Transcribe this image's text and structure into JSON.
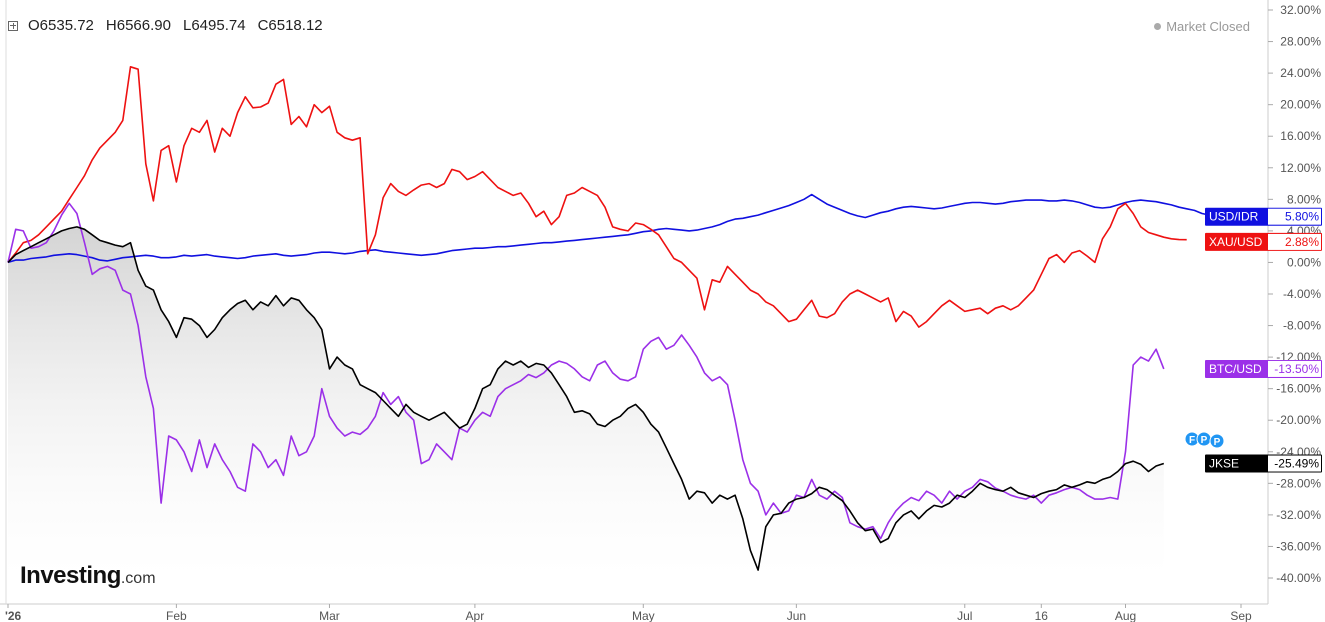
{
  "header": {
    "open_label": "O",
    "open": "6535.72",
    "high_label": "H",
    "high": "6566.90",
    "low_label": "L",
    "low": "6495.74",
    "close_label": "C",
    "close": "6518.12",
    "status": "Market Closed"
  },
  "logo": {
    "brand": "Investing",
    "suffix": ".com"
  },
  "markers": [
    "F",
    "P",
    "P"
  ],
  "colors": {
    "usd_idr": "#1010e0",
    "xau_usd": "#ee1111",
    "btc_usd": "#9b30e8",
    "jkse": "#000000",
    "marker": "#2196f3"
  },
  "chart_data": {
    "type": "line",
    "ylim": [
      -42,
      32
    ],
    "yticks": [
      "32.00%",
      "28.00%",
      "24.00%",
      "20.00%",
      "16.00%",
      "12.00%",
      "8.00%",
      "4.00%",
      "0.00%",
      "-4.00%",
      "-8.00%",
      "-12.00%",
      "-16.00%",
      "-20.00%",
      "-24.00%",
      "-28.00%",
      "-32.00%",
      "-36.00%",
      "-40.00%"
    ],
    "ytick_values": [
      32,
      28,
      24,
      20,
      16,
      12,
      8,
      4,
      0,
      -4,
      -8,
      -12,
      -16,
      -20,
      -24,
      -28,
      -32,
      -36,
      -40
    ],
    "xticks": [
      "'26",
      "Feb",
      "Mar",
      "Apr",
      "May",
      "Jun",
      "Jul",
      "16",
      "Aug",
      "Sep"
    ],
    "xtick_positions": [
      0,
      22,
      42,
      61,
      83,
      103,
      125,
      135,
      146,
      167
    ],
    "series": [
      {
        "name": "USD/IDR",
        "label": "5.80%",
        "color": "#1010e0",
        "values": [
          0,
          0.3,
          0.3,
          0.5,
          0.6,
          0.7,
          0.9,
          1.0,
          1.1,
          1.0,
          0.8,
          0.6,
          0.3,
          0.2,
          0.4,
          0.6,
          0.7,
          0.8,
          0.9,
          0.8,
          0.6,
          0.6,
          0.7,
          0.9,
          0.8,
          0.9,
          1.0,
          0.8,
          0.7,
          0.6,
          0.5,
          0.6,
          0.8,
          0.9,
          1.0,
          1.1,
          0.9,
          0.8,
          0.9,
          1.0,
          1.2,
          1.3,
          1.3,
          1.2,
          1.1,
          1.2,
          1.4,
          1.5,
          1.6,
          1.4,
          1.3,
          1.2,
          1.1,
          1.0,
          0.9,
          1.0,
          1.1,
          1.3,
          1.5,
          1.6,
          1.7,
          1.8,
          1.8,
          1.9,
          2.0,
          2.0,
          2.1,
          2.2,
          2.3,
          2.4,
          2.5,
          2.5,
          2.6,
          2.7,
          2.8,
          2.9,
          3.0,
          3.1,
          3.2,
          3.3,
          3.4,
          3.5,
          3.7,
          3.9,
          4.0,
          4.2,
          4.3,
          4.2,
          4.1,
          4.0,
          4.1,
          4.3,
          4.5,
          4.8,
          5.2,
          5.5,
          5.6,
          5.8,
          6.0,
          6.3,
          6.6,
          6.9,
          7.2,
          7.6,
          8.0,
          8.6,
          8.0,
          7.4,
          7.0,
          6.6,
          6.2,
          5.9,
          5.7,
          6.0,
          6.3,
          6.5,
          6.8,
          7.0,
          7.1,
          7.0,
          6.9,
          6.8,
          6.9,
          7.1,
          7.3,
          7.5,
          7.6,
          7.6,
          7.5,
          7.4,
          7.5,
          7.7,
          7.8,
          7.9,
          7.9,
          7.9,
          7.8,
          7.8,
          7.9,
          7.8,
          7.6,
          7.3,
          7.0,
          6.9,
          7.0,
          7.3,
          7.6,
          7.8,
          7.9,
          7.8,
          7.7,
          7.5,
          7.3,
          7.0,
          6.8,
          6.6,
          6.2,
          6.0,
          6.3,
          6.5,
          6.5,
          6.4,
          6.2,
          6.0,
          5.9,
          5.8,
          5.8,
          5.8
        ]
      },
      {
        "name": "XAU/USD",
        "label": "2.88%",
        "color": "#ee1111",
        "values": [
          0,
          1.2,
          2.5,
          2.8,
          3.5,
          4.5,
          5.5,
          6.5,
          8.0,
          9.5,
          11,
          13,
          14.5,
          15.5,
          16.5,
          18,
          24.8,
          24.5,
          12.5,
          7.8,
          14.2,
          14.8,
          10.2,
          14.8,
          17,
          16.5,
          18,
          14,
          17,
          16,
          19,
          21,
          19.6,
          19.7,
          20.2,
          22.6,
          23.2,
          17.5,
          18.5,
          17.2,
          20,
          19,
          19.8,
          16.5,
          15.8,
          15.5,
          15.8,
          1.1,
          3.5,
          8.2,
          10,
          9,
          8.5,
          9.2,
          9.8,
          10,
          9.5,
          10,
          11.8,
          11.5,
          10.5,
          10.9,
          11.5,
          10.5,
          9.5,
          9,
          8.5,
          8.8,
          7.5,
          5.8,
          6.5,
          4.8,
          5.8,
          8.5,
          8.8,
          9.5,
          9.0,
          8.5,
          7,
          4.5,
          4.2,
          4,
          5,
          4.8,
          4.2,
          3.5,
          2,
          0.5,
          0,
          -1,
          -2,
          -6,
          -2.2,
          -2.5,
          -0.5,
          -1.5,
          -2.5,
          -3.5,
          -4,
          -5,
          -5.5,
          -6.5,
          -7.5,
          -7.2,
          -6,
          -4.8,
          -6.8,
          -7,
          -6.5,
          -5,
          -4,
          -3.5,
          -4,
          -4.5,
          -5,
          -4.5,
          -7.5,
          -6.2,
          -6.8,
          -8.2,
          -7.5,
          -6.5,
          -5.5,
          -4.8,
          -5.5,
          -6.2,
          -6,
          -5.8,
          -6.5,
          -5.8,
          -5.5,
          -6,
          -5.5,
          -4.5,
          -3.5,
          -1.5,
          0.5,
          1,
          0,
          1.2,
          1.5,
          0.8,
          0,
          3,
          4.5,
          6.8,
          7.5,
          6.2,
          4.5,
          3.8,
          3.5,
          3.2,
          3.0,
          2.9,
          2.88
        ]
      },
      {
        "name": "BTC/USD",
        "label": "-13.50%",
        "color": "#9b30e8",
        "values": [
          0,
          4.2,
          4,
          1.8,
          2,
          2.5,
          4,
          6,
          7.5,
          6.2,
          2.5,
          -1.5,
          -0.8,
          -0.5,
          -1,
          -3.5,
          -4,
          -8,
          -14.5,
          -18.5,
          -30.5,
          -22,
          -22.5,
          -24,
          -26.5,
          -22.5,
          -26,
          -23,
          -25,
          -26.5,
          -28.5,
          -29,
          -23,
          -24,
          -26,
          -25,
          -27,
          -22,
          -24.5,
          -24,
          -22,
          -16,
          -19.5,
          -21,
          -22,
          -21.5,
          -21.8,
          -21,
          -19.5,
          -16.5,
          -18,
          -17,
          -19,
          -20,
          -25.5,
          -25,
          -23,
          -24,
          -25,
          -21,
          -21.5,
          -20,
          -19,
          -19.5,
          -17,
          -16,
          -15.5,
          -15,
          -14.2,
          -14.6,
          -14,
          -13,
          -12.5,
          -12.8,
          -13.5,
          -14.5,
          -15,
          -13,
          -12.5,
          -14,
          -14.8,
          -15,
          -14.5,
          -11,
          -10,
          -9.5,
          -11,
          -10.5,
          -9.2,
          -10.5,
          -12,
          -14,
          -15,
          -14.5,
          -15.5,
          -20,
          -25,
          -28,
          -29,
          -32,
          -30.5,
          -31.8,
          -31.5,
          -29.5,
          -29.8,
          -27.5,
          -29.5,
          -30,
          -29,
          -29.8,
          -33,
          -33.5,
          -33.8,
          -33.5,
          -35,
          -33,
          -31.5,
          -30.5,
          -29.8,
          -30.2,
          -29,
          -29.5,
          -30.5,
          -29,
          -30,
          -29,
          -28.5,
          -27.5,
          -27.8,
          -28.6,
          -29,
          -29.5,
          -29.8,
          -30,
          -29.5,
          -30.5,
          -29.5,
          -29.2,
          -28.8,
          -28.5,
          -28.8,
          -29.5,
          -30,
          -30,
          -29.8,
          -30,
          -24,
          -13,
          -12,
          -12.5,
          -11,
          -13.5
        ]
      },
      {
        "name": "JKSE",
        "label": "-25.49%",
        "color": "#000000",
        "values": [
          0,
          1,
          1.5,
          2,
          2.5,
          3,
          3.5,
          4,
          4.3,
          4.5,
          4.2,
          3.5,
          2.8,
          2.5,
          2.2,
          2,
          2.5,
          -1,
          -3,
          -3.5,
          -6,
          -7.5,
          -9.5,
          -7,
          -7.2,
          -8,
          -9.5,
          -8.5,
          -7,
          -6,
          -5.2,
          -4.8,
          -6,
          -5,
          -5.5,
          -4.2,
          -5.5,
          -4.5,
          -4.8,
          -6,
          -7,
          -8.5,
          -13.5,
          -12,
          -13,
          -13.5,
          -15.5,
          -16,
          -16.5,
          -17.5,
          -18.5,
          -19.5,
          -18,
          -19,
          -19.5,
          -20,
          -19.5,
          -19,
          -20,
          -21,
          -20.5,
          -18.5,
          -16,
          -15.5,
          -13.5,
          -12.5,
          -13,
          -12.5,
          -13.3,
          -12.8,
          -13,
          -14,
          -15.5,
          -17,
          -19,
          -18.8,
          -19.2,
          -20.5,
          -20.8,
          -20,
          -19.5,
          -18.5,
          -18,
          -19,
          -20.5,
          -21.5,
          -23.5,
          -25.5,
          -27.5,
          -30,
          -29,
          -29.2,
          -30.5,
          -29.5,
          -30,
          -29.5,
          -32.5,
          -36.5,
          -39,
          -33.5,
          -32,
          -31.8,
          -30.5,
          -30,
          -29.8,
          -29.3,
          -28.5,
          -28.8,
          -29.5,
          -30.2,
          -31.5,
          -33,
          -34,
          -33.8,
          -35.5,
          -35,
          -33,
          -32,
          -31.5,
          -32.5,
          -31.5,
          -30.8,
          -31,
          -30.5,
          -29.5,
          -29.8,
          -29,
          -28,
          -28.5,
          -28.8,
          -29,
          -28.5,
          -29.2,
          -29.5,
          -29.8,
          -29.3,
          -29,
          -28.8,
          -28.2,
          -28.5,
          -28.2,
          -27.8,
          -28,
          -27.5,
          -27.2,
          -26.5,
          -25.5,
          -25.2,
          -25.6,
          -26.5,
          -25.8,
          -25.49
        ]
      }
    ]
  }
}
